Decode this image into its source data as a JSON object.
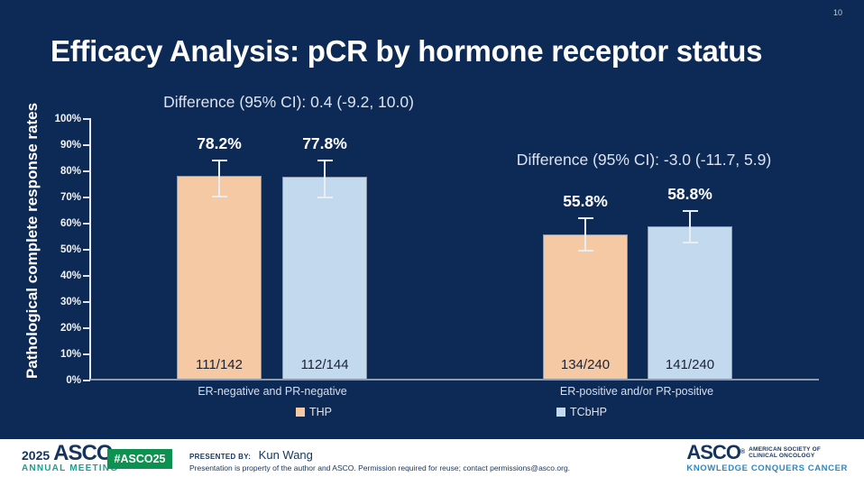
{
  "slide": {
    "page_number": "10",
    "title": "Efficacy Analysis: pCR by hormone receptor status"
  },
  "chart_data": {
    "type": "bar",
    "title": "Efficacy Analysis: pCR by hormone receptor status",
    "xlabel": "",
    "ylabel": "Pathological complete response rates",
    "ylim": [
      0,
      100
    ],
    "y_tick_step": 10,
    "y_ticks": [
      "100%",
      "90%",
      "80%",
      "70%",
      "60%",
      "50%",
      "40%",
      "30%",
      "20%",
      "10%",
      "0%"
    ],
    "grid": false,
    "legend_position": "bottom",
    "categories": [
      "ER-negative and PR-negative",
      "ER-positive and/or PR-positive"
    ],
    "series": [
      {
        "name": "THP",
        "color": "#f5c9a3",
        "values": [
          78.2,
          55.8
        ],
        "value_labels": [
          "78.2%",
          "55.8%"
        ],
        "fractions": [
          "111/142",
          "134/240"
        ],
        "ci": [
          [
            69.8,
            84.6
          ],
          [
            49.0,
            62.2
          ]
        ]
      },
      {
        "name": "TCbHP",
        "color": "#c3d9ee",
        "values": [
          77.8,
          58.8
        ],
        "value_labels": [
          "77.8%",
          "58.8%"
        ],
        "fractions": [
          "112/144",
          "141/240"
        ],
        "ci": [
          [
            69.6,
            84.4
          ],
          [
            52.2,
            65.0
          ]
        ]
      }
    ],
    "annotations": [
      {
        "text": "Difference (95% CI): 0.4 (-9.2, 10.0)",
        "group": 0
      },
      {
        "text": "Difference (95% CI): -3.0 (-11.7, 5.9)",
        "group": 1
      }
    ],
    "legend": [
      "THP",
      "TCbHP"
    ]
  },
  "footer": {
    "logo_year": "2025",
    "logo_name": "ASCO",
    "logo_reg": "®",
    "logo_sub": "ANNUAL MEETING",
    "hashtag": "#ASCO25",
    "presented_by_label": "PRESENTED BY:",
    "presenter": "Kun Wang",
    "disclaimer": "Presentation is property of the author and ASCO. Permission required for reuse; contact permissions@asco.org.",
    "asco_logo": "ASCO",
    "asco_reg": "®",
    "asco_org_line1": "AMERICAN SOCIETY OF",
    "asco_org_line2": "CLINICAL ONCOLOGY",
    "asco_tagline": "KNOWLEDGE CONQUERS CANCER"
  },
  "colors": {
    "background": "#0d2a57",
    "bar_thp": "#f5c9a3",
    "bar_tcbhp": "#c3d9ee",
    "badge_green": "#0c9150",
    "annual_meeting_teal": "#1d9e8e",
    "tagline_blue": "#2d87c3",
    "footer_navy": "#16355e"
  }
}
